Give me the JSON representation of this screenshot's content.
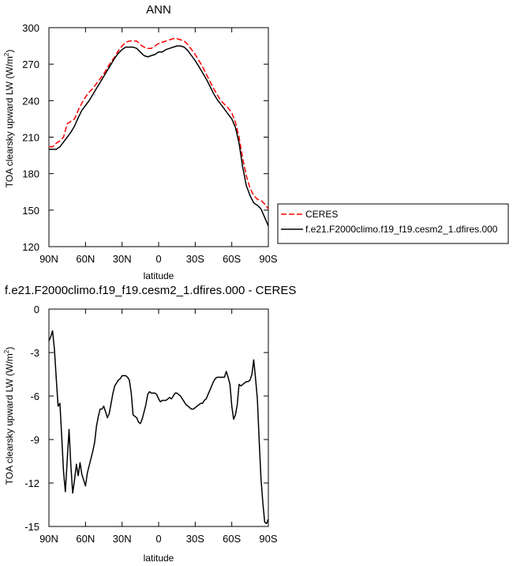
{
  "chart_data": [
    {
      "type": "line",
      "title": "ANN",
      "xlabel": "latitude",
      "ylabel": "TOA clearsky upward LW (W/m",
      "ylabel_sup": "2",
      "ylabel_close": ")",
      "xlim": [
        -90,
        90
      ],
      "ylim": [
        120,
        300
      ],
      "x_ticks": [
        -90,
        -60,
        -30,
        0,
        30,
        60,
        90
      ],
      "x_tick_labels": [
        "90N",
        "60N",
        "30N",
        "0",
        "30S",
        "60S",
        "90S"
      ],
      "y_ticks": [
        120,
        150,
        180,
        210,
        240,
        270,
        300
      ],
      "y_tick_labels": [
        "120",
        "150",
        "180",
        "210",
        "240",
        "270",
        "300"
      ],
      "grid": false,
      "legend_placement": "right",
      "series": [
        {
          "name": "CERES",
          "color": "#ff0000",
          "dash": "dashed",
          "x": [
            -90,
            -87,
            -84,
            -81,
            -78,
            -75,
            -72,
            -69,
            -66,
            -63,
            -60,
            -57,
            -54,
            -51,
            -48,
            -45,
            -42,
            -39,
            -36,
            -33,
            -30,
            -27,
            -24,
            -21,
            -18,
            -15,
            -12,
            -9,
            -6,
            -3,
            0,
            3,
            6,
            9,
            12,
            15,
            18,
            21,
            24,
            27,
            30,
            33,
            36,
            39,
            42,
            45,
            48,
            51,
            54,
            57,
            60,
            63,
            66,
            69,
            72,
            75,
            78,
            81,
            84,
            87,
            90
          ],
          "values": [
            202,
            202,
            205,
            207,
            210,
            221,
            223,
            225,
            232,
            238,
            243,
            247,
            250,
            254,
            258,
            262,
            267,
            272,
            276,
            281,
            285,
            288,
            289,
            289,
            289,
            286,
            284,
            283,
            283,
            285,
            287,
            288,
            289,
            290,
            291,
            291,
            290,
            289,
            286,
            282,
            278,
            273,
            268,
            262,
            256,
            250,
            245,
            240,
            237,
            234,
            230,
            222,
            210,
            192,
            178,
            168,
            162,
            159,
            158,
            155,
            151
          ]
        },
        {
          "name": "f.e21.F2000climo.f19_f19.cesm2_1.dfires.000",
          "color": "#000000",
          "dash": "solid",
          "x": [
            -90,
            -87,
            -84,
            -81,
            -78,
            -75,
            -72,
            -69,
            -66,
            -63,
            -60,
            -57,
            -54,
            -51,
            -48,
            -45,
            -42,
            -39,
            -36,
            -33,
            -30,
            -27,
            -24,
            -21,
            -18,
            -15,
            -12,
            -9,
            -6,
            -3,
            0,
            3,
            6,
            9,
            12,
            15,
            18,
            21,
            24,
            27,
            30,
            33,
            36,
            39,
            42,
            45,
            48,
            51,
            54,
            57,
            60,
            63,
            66,
            69,
            72,
            75,
            78,
            81,
            84,
            87,
            90
          ],
          "values": [
            200,
            200,
            200,
            202,
            206,
            210,
            214,
            219,
            226,
            232,
            236,
            240,
            245,
            250,
            255,
            260,
            265,
            270,
            275,
            279,
            282,
            284,
            284,
            284,
            283,
            280,
            277,
            276,
            277,
            278,
            280,
            280,
            282,
            283,
            284,
            285,
            285,
            284,
            281,
            277,
            273,
            268,
            263,
            258,
            252,
            246,
            241,
            237,
            233,
            229,
            225,
            218,
            205,
            185,
            170,
            162,
            156,
            154,
            151,
            144,
            137
          ]
        }
      ]
    },
    {
      "type": "line",
      "title": "f.e21.F2000climo.f19_f19.cesm2_1.dfires.000 - CERES",
      "xlabel": "latitude",
      "ylabel": "TOA clearsky upward LW (W/m",
      "ylabel_sup": "2",
      "ylabel_close": ")",
      "xlim": [
        -90,
        90
      ],
      "ylim": [
        -15,
        0
      ],
      "x_ticks": [
        -90,
        -60,
        -30,
        0,
        30,
        60,
        90
      ],
      "x_tick_labels": [
        "90N",
        "60N",
        "30N",
        "0",
        "30S",
        "60S",
        "90S"
      ],
      "y_ticks": [
        -15,
        -12,
        -9,
        -6,
        -3,
        0
      ],
      "y_tick_labels": [
        "-15",
        "-12",
        "-9",
        "-6",
        "-3",
        "0"
      ],
      "grid": false,
      "series": [
        {
          "color": "#000000",
          "dash": "solid",
          "x": [
            -90,
            -88.5,
            -87,
            -85.5,
            -84,
            -82.5,
            -81,
            -79.5,
            -78,
            -76.5,
            -75,
            -73.5,
            -72,
            -70.5,
            -69,
            -67.5,
            -66,
            -64.5,
            -63,
            -61.5,
            -60,
            -58.5,
            -57,
            -55.5,
            -54,
            -52.5,
            -51,
            -49.5,
            -48,
            -46.5,
            -45,
            -43.5,
            -42,
            -40.5,
            -39,
            -37.5,
            -36,
            -34.5,
            -33,
            -31.5,
            -30,
            -28.5,
            -27,
            -25.5,
            -24,
            -22.5,
            -21,
            -19.5,
            -18,
            -16.5,
            -15,
            -13.5,
            -12,
            -10.5,
            -9,
            -7.5,
            -6,
            -4.5,
            -3,
            -1.5,
            0,
            1.5,
            3,
            4.5,
            6,
            7.5,
            9,
            10.5,
            12,
            13.5,
            15,
            16.5,
            18,
            19.5,
            21,
            22.5,
            24,
            25.5,
            27,
            28.5,
            30,
            31.5,
            33,
            34.5,
            36,
            37.5,
            39,
            40.5,
            42,
            43.5,
            45,
            46.5,
            48,
            49.5,
            51,
            52.5,
            54,
            55.5,
            57,
            58.5,
            60,
            61.5,
            63,
            64.5,
            66,
            67.5,
            69,
            70.5,
            72,
            73.5,
            75,
            76.5,
            78,
            79.5,
            81,
            82.5,
            84,
            85.5,
            87,
            88.5,
            90
          ],
          "values": [
            -2.2,
            -1.9,
            -1.5,
            -2.8,
            -4.8,
            -6.7,
            -6.5,
            -8.8,
            -11.2,
            -12.6,
            -10.4,
            -8.3,
            -10.8,
            -12.7,
            -11.8,
            -10.7,
            -11.5,
            -10.6,
            -11.4,
            -11.8,
            -12.2,
            -11.3,
            -10.8,
            -10.3,
            -9.8,
            -9.2,
            -8.1,
            -7.4,
            -6.9,
            -6.9,
            -6.7,
            -7.1,
            -7.5,
            -7.2,
            -6.5,
            -5.8,
            -5.3,
            -5.1,
            -4.9,
            -4.8,
            -4.6,
            -4.6,
            -4.6,
            -4.7,
            -4.9,
            -5.8,
            -7.3,
            -7.4,
            -7.5,
            -7.8,
            -7.9,
            -7.6,
            -7.1,
            -6.6,
            -5.9,
            -5.7,
            -5.8,
            -5.8,
            -5.8,
            -5.9,
            -6.2,
            -6.4,
            -6.3,
            -6.3,
            -6.3,
            -6.2,
            -6.1,
            -6.2,
            -6.0,
            -5.8,
            -5.8,
            -5.9,
            -6.0,
            -6.2,
            -6.4,
            -6.6,
            -6.7,
            -6.8,
            -6.9,
            -6.9,
            -6.8,
            -6.7,
            -6.6,
            -6.5,
            -6.5,
            -6.3,
            -6.2,
            -5.9,
            -5.6,
            -5.3,
            -5.0,
            -4.8,
            -4.7,
            -4.7,
            -4.7,
            -4.7,
            -4.7,
            -4.3,
            -4.7,
            -5.2,
            -6.7,
            -7.6,
            -7.3,
            -6.6,
            -5.2,
            -5.3,
            -5.2,
            -5.1,
            -5.0,
            -5.0,
            -4.9,
            -4.5,
            -3.5,
            -4.8,
            -6.2,
            -9.1,
            -11.7,
            -13.4,
            -14.7,
            -14.8,
            -14.5
          ]
        }
      ]
    }
  ]
}
